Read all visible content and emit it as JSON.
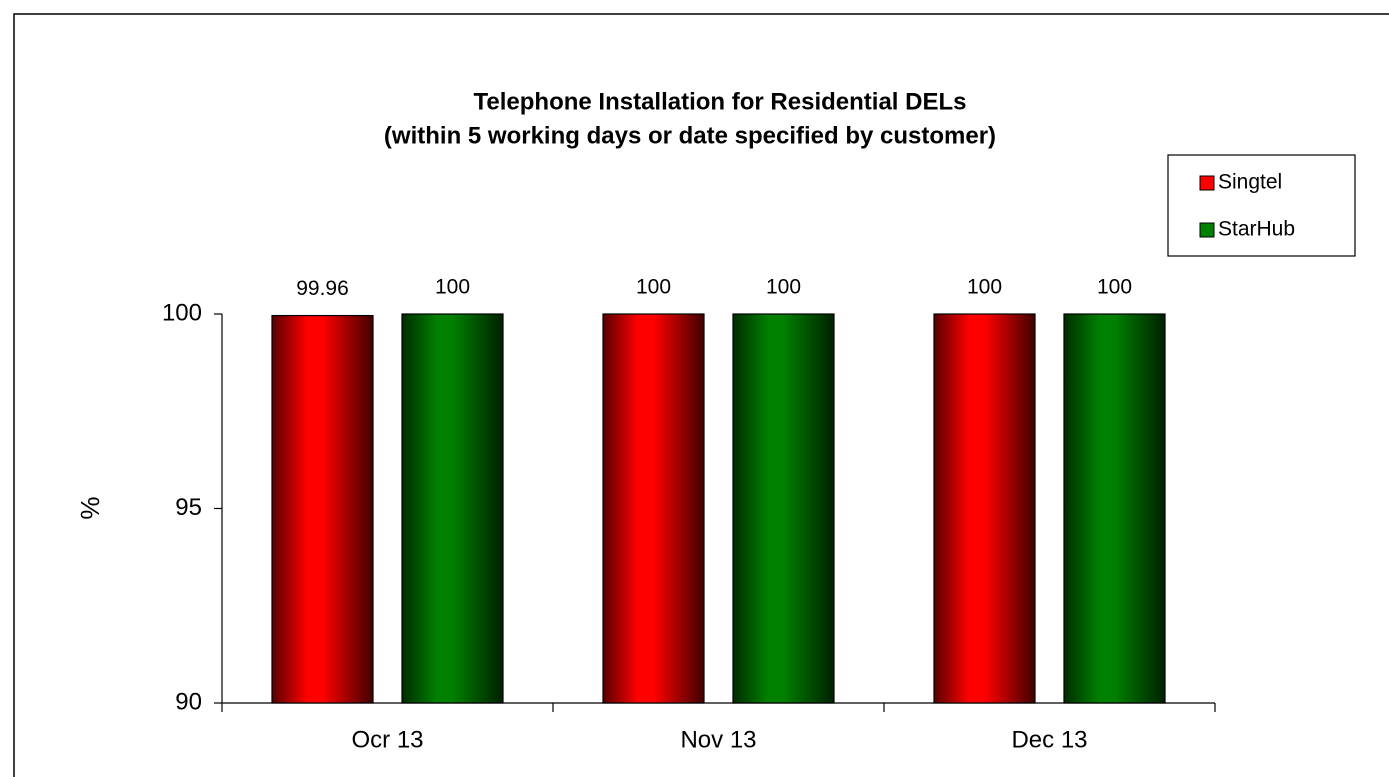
{
  "chart_data": {
    "type": "bar",
    "title": [
      "Telephone Installation for Residential DELs",
      "(within 5 working days or date specified by customer)"
    ],
    "y_label": "%",
    "categories": [
      "Ocr 13",
      "Nov 13",
      "Dec 13"
    ],
    "series": [
      {
        "name": "Singtel",
        "color": "#ff0000",
        "values": [
          99.96,
          100,
          100
        ]
      },
      {
        "name": "StarHub",
        "color": "#008000",
        "values": [
          100,
          100,
          100
        ]
      }
    ],
    "ylim": [
      90,
      100
    ],
    "yticks": [
      90,
      95,
      100
    ],
    "grid": false,
    "legend": "upper right"
  }
}
